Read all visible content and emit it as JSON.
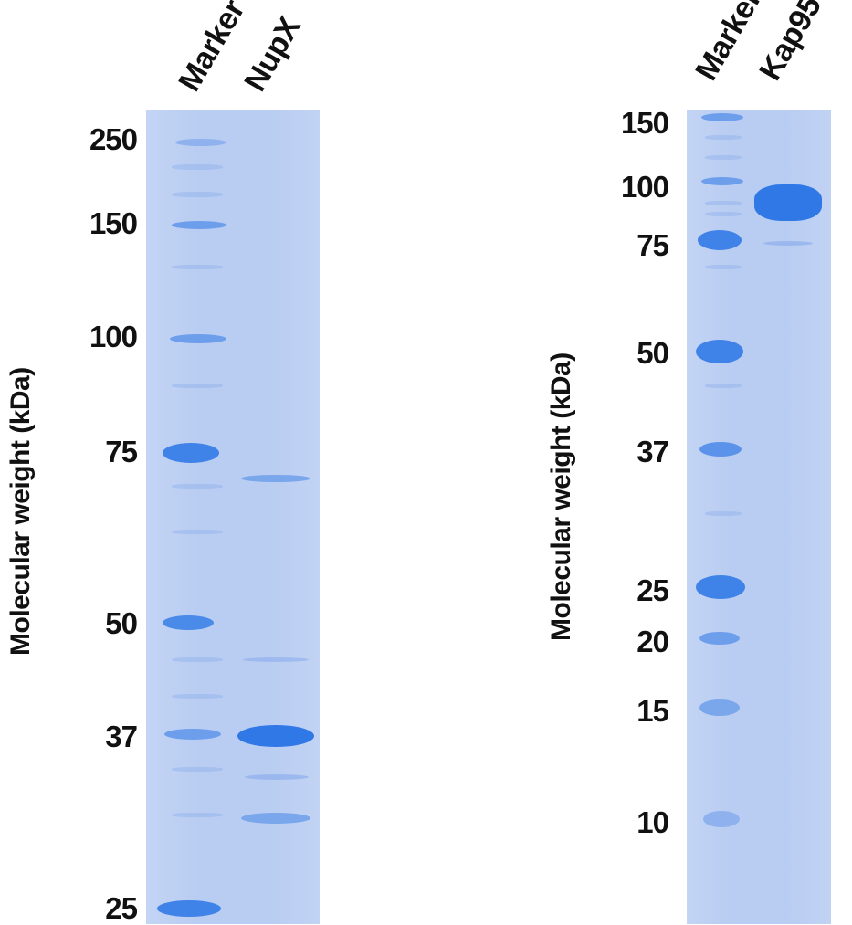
{
  "left_gel": {
    "ylabel": "Molecular weight (kDa)",
    "lanes": [
      "Marker",
      "NupX"
    ],
    "marker_labels": [
      "250",
      "150",
      "100",
      "75",
      "50",
      "37",
      "25"
    ]
  },
  "right_gel": {
    "ylabel": "Molecular weight (kDa)",
    "lanes": [
      "Marker",
      "Kap95"
    ],
    "marker_labels": [
      "150",
      "100",
      "75",
      "50",
      "37",
      "25",
      "20",
      "15",
      "10"
    ]
  },
  "colors": {
    "gel_background": "#b9cdf2",
    "band_strong": "#2f78e6",
    "band_medium": "#5b93ea",
    "band_faint": "#8fb2ee"
  }
}
